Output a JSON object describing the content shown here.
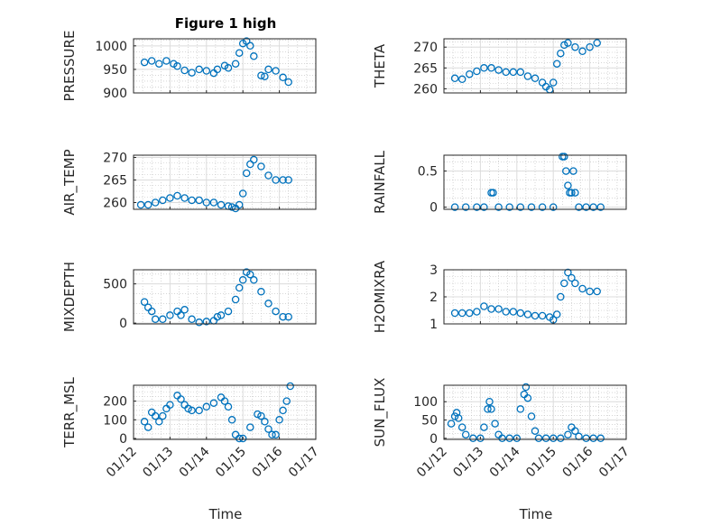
{
  "figure": {
    "title": "Figure 1 high",
    "xlabel": "Time"
  },
  "chart_data": [
    {
      "type": "scatter",
      "name": "PRESSURE",
      "ylabel": "PRESSURE",
      "ylim": [
        900,
        1015
      ],
      "yticks": [
        "900",
        "950",
        "1000"
      ],
      "yticks_v": [
        900,
        950,
        1000
      ],
      "x": [
        12.3,
        12.5,
        12.7,
        12.9,
        13.1,
        13.2,
        13.4,
        13.6,
        13.8,
        14.0,
        14.2,
        14.3,
        14.5,
        14.6,
        14.8,
        14.9,
        15.0,
        15.1,
        15.2,
        15.3,
        15.5,
        15.6,
        15.7,
        15.9,
        16.1,
        16.25
      ],
      "values": [
        965,
        968,
        962,
        968,
        962,
        957,
        948,
        943,
        950,
        947,
        942,
        950,
        958,
        953,
        962,
        985,
        1005,
        1010,
        1000,
        978,
        937,
        935,
        950,
        947,
        933,
        923
      ]
    },
    {
      "type": "scatter",
      "name": "THETA",
      "ylabel": "THETA",
      "ylim": [
        259,
        272
      ],
      "yticks": [
        "260",
        "265",
        "270"
      ],
      "yticks_v": [
        260,
        265,
        270
      ],
      "x": [
        12.3,
        12.5,
        12.7,
        12.9,
        13.1,
        13.3,
        13.5,
        13.7,
        13.9,
        14.1,
        14.3,
        14.5,
        14.7,
        14.8,
        14.9,
        15.0,
        15.1,
        15.2,
        15.3,
        15.4,
        15.6,
        15.8,
        16.0,
        16.2
      ],
      "values": [
        262.5,
        262.3,
        263.5,
        264.2,
        265.0,
        265.0,
        264.5,
        264.0,
        264.0,
        264.0,
        263.0,
        262.5,
        261.5,
        260.5,
        259.8,
        261.5,
        266.0,
        268.5,
        270.5,
        271.0,
        270.0,
        269.0,
        270.0,
        271.0
      ]
    },
    {
      "type": "scatter",
      "name": "AIR_TEMP",
      "ylabel": "AIR_TEMP",
      "ylim": [
        258.5,
        270.5
      ],
      "yticks": [
        "260",
        "265",
        "270"
      ],
      "yticks_v": [
        260,
        265,
        270
      ],
      "x": [
        12.2,
        12.4,
        12.6,
        12.8,
        13.0,
        13.2,
        13.4,
        13.6,
        13.8,
        14.0,
        14.2,
        14.4,
        14.6,
        14.7,
        14.8,
        14.9,
        15.0,
        15.1,
        15.2,
        15.3,
        15.5,
        15.7,
        15.9,
        16.1,
        16.25
      ],
      "values": [
        259.5,
        259.5,
        260.0,
        260.5,
        261.0,
        261.5,
        261.0,
        260.5,
        260.5,
        260.0,
        260.0,
        259.5,
        259.2,
        259.0,
        258.7,
        259.5,
        262.0,
        266.5,
        268.5,
        269.5,
        268.0,
        266.0,
        265.0,
        265.0,
        265.0
      ]
    },
    {
      "type": "scatter",
      "name": "RAINFALL",
      "ylabel": "RAINFALL",
      "ylim": [
        -0.03,
        0.72
      ],
      "yticks": [
        "0",
        "0.5"
      ],
      "yticks_v": [
        0,
        0.5
      ],
      "x": [
        12.3,
        12.6,
        12.9,
        13.1,
        13.3,
        13.35,
        13.5,
        13.8,
        14.1,
        14.4,
        14.7,
        15.0,
        15.25,
        15.3,
        15.35,
        15.4,
        15.45,
        15.5,
        15.55,
        15.6,
        15.7,
        15.9,
        16.1,
        16.3
      ],
      "values": [
        0,
        0,
        0,
        0,
        0.2,
        0.2,
        0,
        0,
        0,
        0,
        0,
        0,
        0.7,
        0.7,
        0.5,
        0.3,
        0.2,
        0.2,
        0.5,
        0.2,
        0,
        0,
        0,
        0
      ]
    },
    {
      "type": "scatter",
      "name": "MIXDEPTH",
      "ylabel": "MIXDEPTH",
      "ylim": [
        -10,
        680
      ],
      "yticks": [
        "0",
        "500"
      ],
      "yticks_v": [
        0,
        500
      ],
      "x": [
        12.3,
        12.4,
        12.5,
        12.6,
        12.8,
        13.0,
        13.2,
        13.3,
        13.4,
        13.6,
        13.8,
        14.0,
        14.2,
        14.3,
        14.4,
        14.6,
        14.8,
        14.9,
        15.0,
        15.1,
        15.2,
        15.3,
        15.5,
        15.7,
        15.9,
        16.1,
        16.25
      ],
      "values": [
        270,
        200,
        150,
        50,
        50,
        100,
        150,
        100,
        170,
        50,
        10,
        20,
        30,
        80,
        100,
        150,
        300,
        450,
        550,
        650,
        620,
        550,
        400,
        250,
        150,
        80,
        80
      ]
    },
    {
      "type": "scatter",
      "name": "H2OMIXRA",
      "ylabel": "H2OMIXRA",
      "ylim": [
        1.0,
        3.0
      ],
      "yticks": [
        "1",
        "2",
        "3"
      ],
      "yticks_v": [
        1,
        2,
        3
      ],
      "x": [
        12.3,
        12.5,
        12.7,
        12.9,
        13.1,
        13.3,
        13.5,
        13.7,
        13.9,
        14.1,
        14.3,
        14.5,
        14.7,
        14.9,
        15.0,
        15.1,
        15.2,
        15.3,
        15.4,
        15.5,
        15.6,
        15.8,
        16.0,
        16.2
      ],
      "values": [
        1.4,
        1.4,
        1.4,
        1.45,
        1.65,
        1.55,
        1.55,
        1.45,
        1.45,
        1.4,
        1.35,
        1.3,
        1.3,
        1.25,
        1.15,
        1.35,
        2.0,
        2.5,
        2.9,
        2.7,
        2.5,
        2.3,
        2.2,
        2.2
      ]
    },
    {
      "type": "scatter",
      "name": "TERR_MSL",
      "ylabel": "TERR_MSL",
      "ylim": [
        -5,
        285
      ],
      "yticks": [
        "0",
        "100",
        "200"
      ],
      "yticks_v": [
        0,
        100,
        200
      ],
      "x": [
        12.3,
        12.4,
        12.5,
        12.6,
        12.7,
        12.8,
        12.9,
        13.0,
        13.2,
        13.3,
        13.4,
        13.5,
        13.6,
        13.8,
        14.0,
        14.2,
        14.4,
        14.5,
        14.6,
        14.7,
        14.8,
        14.9,
        15.0,
        15.2,
        15.4,
        15.5,
        15.6,
        15.7,
        15.8,
        15.9,
        16.0,
        16.1,
        16.2,
        16.3
      ],
      "values": [
        90,
        60,
        140,
        120,
        90,
        120,
        160,
        180,
        230,
        210,
        180,
        160,
        150,
        150,
        170,
        190,
        220,
        200,
        170,
        100,
        20,
        0,
        0,
        60,
        130,
        120,
        90,
        50,
        20,
        20,
        100,
        150,
        200,
        280
      ]
    },
    {
      "type": "scatter",
      "name": "SUN_FLUX",
      "ylabel": "SUN_FLUX",
      "ylim": [
        -3,
        145
      ],
      "yticks": [
        "0",
        "50",
        "100"
      ],
      "yticks_v": [
        0,
        50,
        100
      ],
      "x": [
        12.2,
        12.3,
        12.35,
        12.4,
        12.5,
        12.6,
        12.8,
        13.0,
        13.1,
        13.2,
        13.25,
        13.3,
        13.4,
        13.5,
        13.6,
        13.8,
        14.0,
        14.1,
        14.2,
        14.25,
        14.3,
        14.4,
        14.5,
        14.6,
        14.8,
        15.0,
        15.2,
        15.4,
        15.5,
        15.6,
        15.7,
        15.9,
        16.1,
        16.3
      ],
      "values": [
        40,
        60,
        70,
        55,
        30,
        10,
        0,
        0,
        30,
        80,
        100,
        80,
        40,
        10,
        0,
        0,
        0,
        80,
        120,
        140,
        110,
        60,
        20,
        0,
        0,
        0,
        0,
        10,
        30,
        20,
        5,
        0,
        0,
        0
      ]
    }
  ],
  "xaxis": {
    "range": [
      12,
      17
    ],
    "ticks": [
      "01/12",
      "01/13",
      "01/14",
      "01/15",
      "01/16",
      "01/17"
    ],
    "ticks_v": [
      12,
      13,
      14,
      15,
      16,
      17
    ]
  },
  "colors": {
    "marker": "#0072BD",
    "axis": "#262626",
    "grid_major": "#dcdcdc",
    "grid_minor": "#bdbdbd"
  }
}
